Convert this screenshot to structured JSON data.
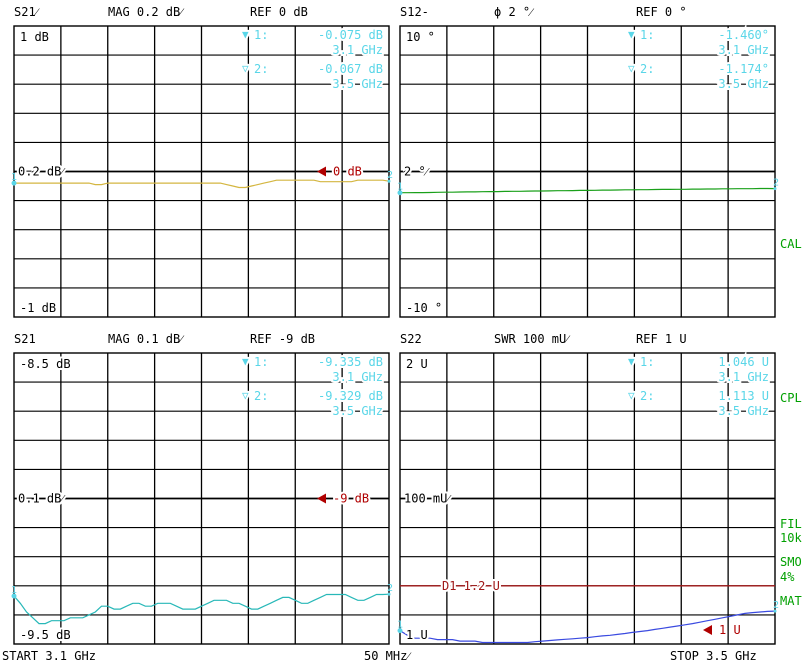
{
  "colors": {
    "grid": "#000000",
    "marker_text": "#5ad6e8",
    "ref_marker": "#b00000",
    "side_labels": "#00a000",
    "trace_s21_mag": "#d4b640",
    "trace_s12_phase": "#1aa01a",
    "trace_s21_mag2": "#28b8b8",
    "trace_s22_swr": "#3a4ae0",
    "limit_line": "#a01818"
  },
  "panels": [
    {
      "id": "s21-mag-top",
      "header": {
        "param": "S21⁄",
        "format": "MAG 0.2 dB⁄",
        "ref": "REF 0 dB"
      },
      "top_scale": "1 dB",
      "mid_scale": "0.2 dB⁄",
      "bottom_scale": "-1 dB",
      "ref_label": "0 dB",
      "markers": [
        {
          "symbol": "▼",
          "index": "1:",
          "value": "-0.075 dB",
          "freq": "3.1 GHz"
        },
        {
          "symbol": "▽",
          "index": "2:",
          "value": "-0.067 dB",
          "freq": "3.5 GHz"
        }
      ],
      "trace_color_key": "trace_s21_mag",
      "y_range": [
        -1,
        1
      ],
      "ref_value": 0,
      "trace": [
        -0.08,
        -0.08,
        -0.08,
        -0.08,
        -0.08,
        -0.08,
        -0.08,
        -0.08,
        -0.08,
        -0.08,
        -0.08,
        -0.08,
        -0.08,
        -0.09,
        -0.09,
        -0.08,
        -0.08,
        -0.08,
        -0.08,
        -0.08,
        -0.08,
        -0.08,
        -0.08,
        -0.08,
        -0.08,
        -0.08,
        -0.08,
        -0.08,
        -0.08,
        -0.08,
        -0.08,
        -0.08,
        -0.08,
        -0.08,
        -0.09,
        -0.1,
        -0.11,
        -0.11,
        -0.1,
        -0.09,
        -0.08,
        -0.07,
        -0.06,
        -0.06,
        -0.06,
        -0.06,
        -0.06,
        -0.06,
        -0.06,
        -0.07,
        -0.07,
        -0.07,
        -0.07,
        -0.07,
        -0.07,
        -0.06,
        -0.06,
        -0.06,
        -0.06,
        -0.06,
        -0.067
      ]
    },
    {
      "id": "s12-phase-top",
      "header": {
        "param": "S12-",
        "format": "ϕ  2 °⁄",
        "ref": "REF 0 °"
      },
      "top_scale": "10 °",
      "mid_scale": "2 °⁄",
      "bottom_scale": "-10 °",
      "ref_label": "",
      "markers": [
        {
          "symbol": "▼",
          "index": "1:",
          "value": "-1.460°",
          "freq": "3.1 GHz"
        },
        {
          "symbol": "▽",
          "index": "2:",
          "value": "-1.174°",
          "freq": "3.5 GHz"
        }
      ],
      "trace_color_key": "trace_s12_phase",
      "y_range": [
        -10,
        10
      ],
      "ref_value": 0,
      "trace": [
        -1.46,
        -1.46,
        -1.45,
        -1.45,
        -1.44,
        -1.43,
        -1.42,
        -1.42,
        -1.41,
        -1.4,
        -1.4,
        -1.39,
        -1.38,
        -1.38,
        -1.37,
        -1.36,
        -1.36,
        -1.35,
        -1.34,
        -1.34,
        -1.33,
        -1.32,
        -1.32,
        -1.31,
        -1.3,
        -1.3,
        -1.29,
        -1.28,
        -1.28,
        -1.27,
        -1.26,
        -1.26,
        -1.25,
        -1.25,
        -1.24,
        -1.23,
        -1.23,
        -1.22,
        -1.22,
        -1.21,
        -1.21,
        -1.2,
        -1.2,
        -1.19,
        -1.19,
        -1.18,
        -1.18,
        -1.18,
        -1.17,
        -1.17,
        -1.174
      ]
    },
    {
      "id": "s21-mag-bottom",
      "header": {
        "param": "S21",
        "format": "MAG 0.1 dB⁄",
        "ref": "REF -9 dB"
      },
      "top_scale": "-8.5 dB",
      "mid_scale": "0.1 dB⁄",
      "bottom_scale": "-9.5 dB",
      "ref_label": "-9 dB",
      "markers": [
        {
          "symbol": "▼",
          "index": "1:",
          "value": "-9.335 dB",
          "freq": "3.1 GHz"
        },
        {
          "symbol": "▽",
          "index": "2:",
          "value": "-9.329 dB",
          "freq": "3.5 GHz"
        }
      ],
      "trace_color_key": "trace_s21_mag2",
      "y_range": [
        -9.5,
        -8.5
      ],
      "ref_value": -9,
      "trace": [
        -9.335,
        -9.36,
        -9.39,
        -9.41,
        -9.43,
        -9.43,
        -9.42,
        -9.42,
        -9.42,
        -9.41,
        -9.41,
        -9.41,
        -9.4,
        -9.39,
        -9.37,
        -9.37,
        -9.38,
        -9.38,
        -9.37,
        -9.36,
        -9.36,
        -9.37,
        -9.37,
        -9.36,
        -9.36,
        -9.36,
        -9.37,
        -9.38,
        -9.38,
        -9.38,
        -9.37,
        -9.36,
        -9.35,
        -9.35,
        -9.35,
        -9.36,
        -9.36,
        -9.37,
        -9.38,
        -9.38,
        -9.37,
        -9.36,
        -9.35,
        -9.34,
        -9.34,
        -9.35,
        -9.36,
        -9.36,
        -9.35,
        -9.34,
        -9.33,
        -9.33,
        -9.33,
        -9.33,
        -9.34,
        -9.35,
        -9.35,
        -9.34,
        -9.33,
        -9.33,
        -9.329
      ]
    },
    {
      "id": "s22-swr-bottom",
      "header": {
        "param": "S22",
        "format": "SWR 100 mU⁄",
        "ref": "REF 1 U"
      },
      "top_scale": "2 U",
      "mid_scale": "100 mU⁄",
      "bottom_scale": "1 U",
      "ref_label": "1 U",
      "limit_label": "D1 1.2 U",
      "limit_value": 1.2,
      "markers": [
        {
          "symbol": "▼",
          "index": "1:",
          "value": "1.046 U",
          "freq": "3.1 GHz"
        },
        {
          "symbol": "▽",
          "index": "2:",
          "value": "1.113 U",
          "freq": "3.5 GHz"
        }
      ],
      "trace_color_key": "trace_s22_swr",
      "y_range": [
        1,
        2
      ],
      "ref_value": 1,
      "trace": [
        1.046,
        1.03,
        1.02,
        1.02,
        1.02,
        1.015,
        1.015,
        1.015,
        1.01,
        1.01,
        1.01,
        1.005,
        1.005,
        1.005,
        1.005,
        1.005,
        1.005,
        1.005,
        1.008,
        1.01,
        1.012,
        1.014,
        1.016,
        1.018,
        1.02,
        1.022,
        1.025,
        1.028,
        1.03,
        1.033,
        1.036,
        1.04,
        1.043,
        1.046,
        1.05,
        1.054,
        1.058,
        1.062,
        1.066,
        1.07,
        1.075,
        1.08,
        1.085,
        1.09,
        1.095,
        1.1,
        1.105,
        1.108,
        1.11,
        1.112,
        1.113
      ]
    }
  ],
  "side_labels": {
    "cal": "CAL",
    "cpl": "CPL",
    "fil": "FIL",
    "fil_sub": "10k",
    "smo": "SMO",
    "smo_sub": "4%",
    "mat": "MAT"
  },
  "footer": {
    "start": "START  3.1 GHz",
    "span": "50 MHz⁄",
    "stop": "STOP 3.5 GHz"
  }
}
